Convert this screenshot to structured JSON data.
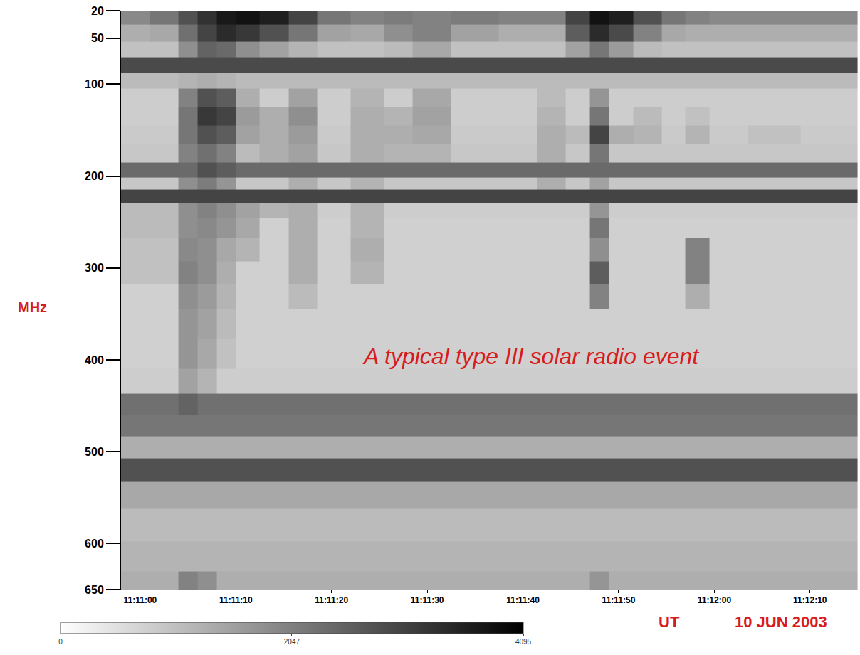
{
  "chart_data": {
    "type": "heatmap",
    "ylabel": "MHz",
    "xlabel": "UT",
    "annotations": [
      "A typical type III solar radio event",
      "10 JUN 2003"
    ],
    "x": [
      "11:10:59",
      "11:11:03",
      "11:11:05",
      "11:11:07",
      "11:11:09",
      "11:11:11",
      "11:11:14",
      "11:11:17",
      "11:11:20",
      "11:11:24",
      "11:11:27",
      "11:11:30",
      "11:11:35",
      "11:11:40",
      "11:11:43",
      "11:11:46",
      "11:11:48",
      "11:11:50",
      "11:11:53",
      "11:11:56",
      "11:11:58",
      "11:12:01",
      "11:12:06",
      "11:12:12"
    ],
    "y": [
      25,
      45,
      62,
      80,
      95,
      115,
      135,
      155,
      175,
      195,
      208,
      222,
      236,
      255,
      280,
      305,
      330,
      360,
      395,
      425,
      448,
      472,
      495,
      520,
      545,
      580,
      615,
      645
    ],
    "cells": [
      [
        1900,
        2200,
        2800,
        3300,
        3700,
        3800,
        3600,
        3000,
        2200,
        2000,
        2100,
        2000,
        2100,
        2000,
        2000,
        3000,
        3800,
        3600,
        2800,
        2200,
        2000,
        1900,
        1900,
        1900
      ],
      [
        1300,
        1400,
        2300,
        3000,
        3400,
        3200,
        2800,
        2200,
        1500,
        1400,
        1800,
        2000,
        1500,
        1300,
        1300,
        2600,
        3400,
        2900,
        2000,
        1400,
        1300,
        1300,
        1300,
        1300
      ],
      [
        1000,
        1000,
        1800,
        2500,
        2400,
        1800,
        1500,
        1200,
        1000,
        1000,
        1100,
        1400,
        1000,
        1000,
        1000,
        1500,
        2200,
        1600,
        1100,
        1000,
        1000,
        1000,
        1000,
        1000
      ],
      [
        2900,
        2900,
        2900,
        2900,
        2900,
        2900,
        2900,
        2900,
        2900,
        2900,
        2900,
        2900,
        2900,
        2900,
        2900,
        2900,
        2900,
        2900,
        2900,
        2900,
        2900,
        2900,
        2900,
        2900
      ],
      [
        1100,
        1100,
        1200,
        1300,
        1200,
        1100,
        1100,
        1100,
        1100,
        1100,
        1100,
        1100,
        1100,
        1100,
        1100,
        1100,
        1100,
        1100,
        1100,
        1100,
        1100,
        1100,
        1100,
        1100
      ],
      [
        800,
        800,
        2000,
        2800,
        2600,
        1300,
        800,
        1500,
        800,
        1200,
        800,
        1400,
        800,
        800,
        1100,
        800,
        1700,
        800,
        800,
        800,
        800,
        800,
        800,
        800
      ],
      [
        800,
        800,
        2200,
        3200,
        3000,
        1600,
        1300,
        1800,
        800,
        1300,
        1200,
        1500,
        800,
        800,
        1200,
        800,
        2200,
        800,
        1100,
        800,
        1000,
        800,
        800,
        800
      ],
      [
        850,
        850,
        2200,
        2800,
        2600,
        1500,
        1300,
        1600,
        850,
        1300,
        1300,
        1400,
        850,
        850,
        1300,
        1100,
        3000,
        1300,
        1200,
        850,
        1200,
        850,
        1000,
        850
      ],
      [
        900,
        900,
        2000,
        2300,
        2000,
        1100,
        1300,
        1500,
        900,
        1300,
        1200,
        1200,
        900,
        900,
        1300,
        900,
        2200,
        900,
        900,
        900,
        900,
        900,
        900,
        900
      ],
      [
        2400,
        2400,
        2400,
        2800,
        2600,
        2400,
        2400,
        2400,
        2400,
        2400,
        2400,
        2400,
        2400,
        2400,
        2400,
        2400,
        2400,
        2400,
        2400,
        2400,
        2400,
        2400,
        2400,
        2400
      ],
      [
        900,
        900,
        1800,
        2100,
        1700,
        900,
        900,
        1300,
        900,
        1200,
        900,
        900,
        900,
        900,
        1300,
        900,
        1500,
        900,
        900,
        900,
        900,
        900,
        900,
        900
      ],
      [
        3000,
        3000,
        3000,
        3000,
        3000,
        3000,
        3000,
        3000,
        3000,
        3000,
        3000,
        3000,
        3000,
        3000,
        3000,
        3000,
        3000,
        3000,
        3000,
        3000,
        3000,
        3000,
        3000,
        3000
      ],
      [
        1100,
        1100,
        1800,
        2000,
        1800,
        1500,
        1200,
        1300,
        800,
        1200,
        800,
        800,
        800,
        800,
        800,
        800,
        1700,
        800,
        800,
        800,
        800,
        800,
        800,
        800
      ],
      [
        1100,
        1100,
        1800,
        1900,
        1700,
        1400,
        750,
        1300,
        750,
        1200,
        750,
        750,
        750,
        750,
        750,
        750,
        2200,
        750,
        750,
        750,
        750,
        750,
        750,
        750
      ],
      [
        1000,
        1000,
        1900,
        1800,
        1400,
        1200,
        750,
        1300,
        750,
        1300,
        750,
        750,
        750,
        750,
        750,
        750,
        1800,
        750,
        750,
        750,
        2000,
        750,
        750,
        750
      ],
      [
        1000,
        1000,
        2000,
        1800,
        1300,
        750,
        750,
        1300,
        750,
        1200,
        750,
        750,
        750,
        750,
        750,
        750,
        2600,
        750,
        750,
        750,
        2000,
        750,
        750,
        750
      ],
      [
        750,
        750,
        1800,
        1600,
        1200,
        750,
        750,
        1100,
        750,
        750,
        750,
        750,
        750,
        750,
        750,
        750,
        2000,
        750,
        750,
        750,
        1300,
        750,
        750,
        750
      ],
      [
        750,
        750,
        1700,
        1500,
        1100,
        750,
        750,
        750,
        750,
        750,
        750,
        750,
        750,
        750,
        750,
        750,
        750,
        750,
        750,
        750,
        750,
        750,
        750,
        750
      ],
      [
        750,
        750,
        1700,
        1400,
        1000,
        750,
        750,
        750,
        750,
        750,
        750,
        750,
        750,
        750,
        750,
        750,
        750,
        750,
        750,
        750,
        750,
        750,
        750,
        750
      ],
      [
        800,
        800,
        1500,
        1200,
        800,
        800,
        800,
        800,
        800,
        800,
        800,
        800,
        800,
        800,
        800,
        800,
        800,
        800,
        800,
        800,
        800,
        800,
        800,
        800
      ],
      [
        2300,
        2300,
        2500,
        2300,
        2300,
        2300,
        2300,
        2300,
        2300,
        2300,
        2300,
        2300,
        2300,
        2300,
        2300,
        2300,
        2300,
        2300,
        2300,
        2300,
        2300,
        2300,
        2300,
        2300
      ],
      [
        2200,
        2200,
        2200,
        2200,
        2200,
        2200,
        2200,
        2200,
        2200,
        2200,
        2200,
        2200,
        2200,
        2200,
        2200,
        2200,
        2200,
        2200,
        2200,
        2200,
        2200,
        2200,
        2200,
        2200
      ],
      [
        1300,
        1300,
        1300,
        1300,
        1300,
        1300,
        1300,
        1300,
        1300,
        1300,
        1300,
        1300,
        1300,
        1300,
        1300,
        1300,
        1300,
        1300,
        1300,
        1300,
        1300,
        1300,
        1300,
        1300
      ],
      [
        2800,
        2800,
        2800,
        2800,
        2800,
        2800,
        2800,
        2800,
        2800,
        2800,
        2800,
        2800,
        2800,
        2800,
        2800,
        2800,
        2800,
        2800,
        2800,
        2800,
        2800,
        2800,
        2800,
        2800
      ],
      [
        1400,
        1400,
        1400,
        1400,
        1400,
        1400,
        1400,
        1400,
        1400,
        1400,
        1400,
        1400,
        1400,
        1400,
        1400,
        1400,
        1400,
        1400,
        1400,
        1400,
        1400,
        1400,
        1400,
        1400
      ],
      [
        1100,
        1100,
        1100,
        1100,
        1100,
        1100,
        1100,
        1100,
        1100,
        1100,
        1100,
        1100,
        1100,
        1100,
        1100,
        1100,
        1100,
        1100,
        1100,
        1100,
        1100,
        1100,
        1100,
        1100
      ],
      [
        1200,
        1200,
        1200,
        1200,
        1200,
        1200,
        1200,
        1200,
        1200,
        1200,
        1200,
        1200,
        1200,
        1200,
        1200,
        1200,
        1200,
        1200,
        1200,
        1200,
        1200,
        1200,
        1200,
        1200
      ],
      [
        1300,
        1300,
        2000,
        1800,
        1300,
        1300,
        1300,
        1300,
        1300,
        1300,
        1300,
        1300,
        1300,
        1300,
        1300,
        1300,
        1700,
        1300,
        1300,
        1300,
        1300,
        1300,
        1300,
        1300
      ]
    ],
    "colorbar": {
      "range": [
        0,
        4095
      ],
      "ticks": [
        0,
        2047,
        4095
      ]
    },
    "xlim": [
      "11:10:58",
      "11:12:15"
    ],
    "xticks": [
      "11:11:00",
      "11:11:10",
      "11:11:20",
      "11:11:30",
      "11:11:40",
      "11:11:50",
      "11:12:00",
      "11:12:10"
    ],
    "ylim": [
      650,
      20
    ],
    "yticks": [
      20,
      50,
      100,
      200,
      300,
      400,
      500,
      600,
      650
    ],
    "grid": false
  }
}
